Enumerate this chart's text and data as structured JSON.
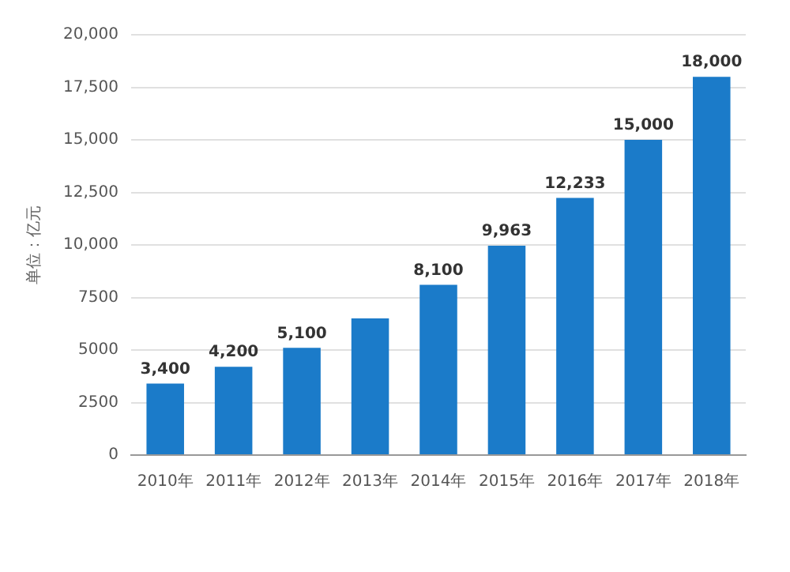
{
  "chart_data": {
    "type": "bar",
    "ylabel": "单位：亿元",
    "categories": [
      "2010年",
      "2011年",
      "2012年",
      "2013年",
      "2014年",
      "2015年",
      "2016年",
      "2017年",
      "2018年"
    ],
    "values": [
      3400,
      4200,
      5100,
      6500,
      8100,
      9963,
      12233,
      15000,
      18000
    ],
    "value_labels": [
      "3,400",
      "4,200",
      "5,100",
      null,
      "8,100",
      "9,963",
      "12,233",
      "15,000",
      "18,000"
    ],
    "color": "#1b7bc9",
    "ylim": [
      0,
      20000
    ],
    "yticks": [
      {
        "value": 0,
        "label": "0"
      },
      {
        "value": 2500,
        "label": "2500"
      },
      {
        "value": 5000,
        "label": "5000"
      },
      {
        "value": 7500,
        "label": "7500"
      },
      {
        "value": 10000,
        "label": "10,000"
      },
      {
        "value": 12500,
        "label": "12,500"
      },
      {
        "value": 15000,
        "label": "15,000"
      },
      {
        "value": 17500,
        "label": "17,500"
      },
      {
        "value": 20000,
        "label": "20,000"
      }
    ],
    "grid": "y",
    "legend": false
  }
}
